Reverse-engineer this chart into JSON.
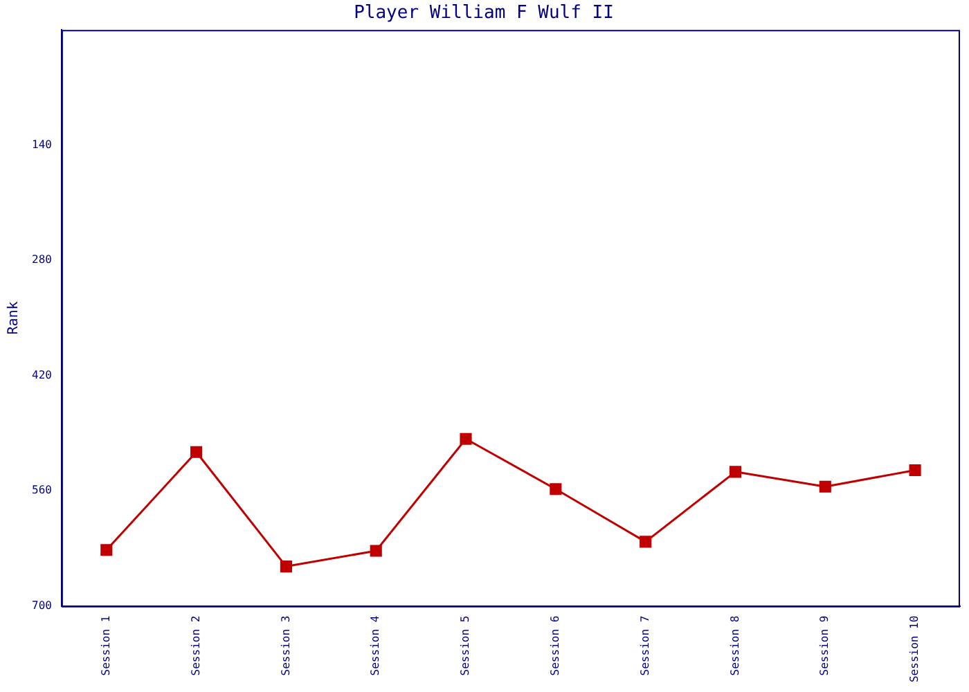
{
  "chart_data": {
    "type": "line",
    "title": "Player William F Wulf II",
    "ylabel": "Rank",
    "categories": [
      "Session 1",
      "Session 2",
      "Session 3",
      "Session 4",
      "Session 5",
      "Session 6",
      "Session 7",
      "Session 8",
      "Session 9",
      "Session 10"
    ],
    "series": [
      {
        "color": "#c00000",
        "values": [
          632,
          513,
          652,
          633,
          497,
          558,
          622,
          537,
          555,
          535
        ]
      }
    ],
    "ylim": [
      700,
      0
    ],
    "yticks": [
      140,
      280,
      420,
      560,
      700
    ],
    "grid": false,
    "legend": false,
    "marker": "square",
    "line_style": "solid"
  }
}
